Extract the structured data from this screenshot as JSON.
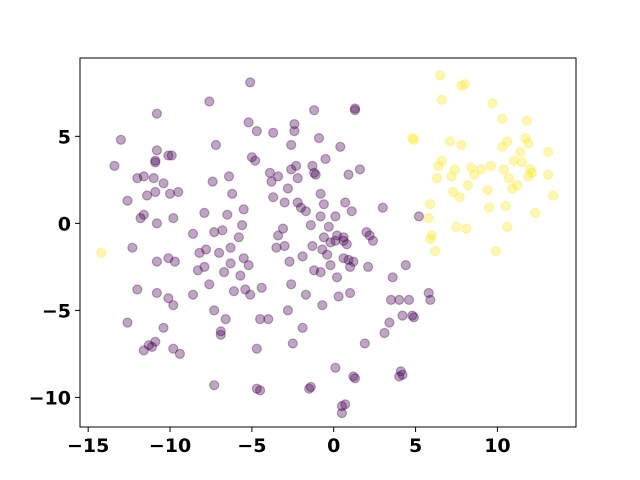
{
  "chart_data": {
    "type": "scatter",
    "title": "",
    "xlabel": "",
    "ylabel": "",
    "xlim": [
      -15.5,
      14.8
    ],
    "ylim": [
      -11.7,
      9.5
    ],
    "xticks": [
      -15,
      -10,
      -5,
      0,
      5,
      10
    ],
    "yticks": [
      5,
      0,
      -5,
      -10
    ],
    "xtick_labels": [
      "−15",
      "−10",
      "−5",
      "0",
      "5",
      "10"
    ],
    "ytick_labels": [
      "5",
      "0",
      "−5",
      "−10"
    ],
    "grid": false,
    "marker_alpha": 0.35,
    "series": [
      {
        "color": "#440154",
        "points": [
          [
            -13.0,
            4.8
          ],
          [
            -13.4,
            3.3
          ],
          [
            -12.6,
            1.3
          ],
          [
            -12.0,
            2.6
          ],
          [
            -11.6,
            2.7
          ],
          [
            -11.4,
            1.6
          ],
          [
            -11.8,
            0.3
          ],
          [
            -11.6,
            0.5
          ],
          [
            -12.3,
            -1.4
          ],
          [
            -12.0,
            -3.8
          ],
          [
            -12.6,
            -5.7
          ],
          [
            -10.8,
            6.3
          ],
          [
            -10.8,
            4.2
          ],
          [
            -10.9,
            3.6
          ],
          [
            -10.9,
            3.5
          ],
          [
            -11.0,
            2.6
          ],
          [
            -10.9,
            1.8
          ],
          [
            -10.4,
            2.3
          ],
          [
            -10.0,
            1.7
          ],
          [
            -10.1,
            3.9
          ],
          [
            -9.9,
            3.9
          ],
          [
            -9.5,
            1.8
          ],
          [
            -10.8,
            0.0
          ],
          [
            -9.8,
            0.3
          ],
          [
            -10.8,
            -2.2
          ],
          [
            -10.1,
            -2.0
          ],
          [
            -9.7,
            -2.2
          ],
          [
            -10.8,
            -4.0
          ],
          [
            -10.1,
            -4.3
          ],
          [
            -9.8,
            -4.7
          ],
          [
            -10.4,
            -6.0
          ],
          [
            -10.9,
            -6.8
          ],
          [
            -11.3,
            -7.0
          ],
          [
            -11.1,
            -7.1
          ],
          [
            -11.6,
            -7.3
          ],
          [
            -9.8,
            -7.2
          ],
          [
            -9.4,
            -7.5
          ],
          [
            -8.6,
            -0.6
          ],
          [
            -8.2,
            -1.7
          ],
          [
            -8.3,
            -2.7
          ],
          [
            -8.6,
            -4.1
          ],
          [
            -7.6,
            7.0
          ],
          [
            -7.2,
            4.5
          ],
          [
            -7.4,
            2.4
          ],
          [
            -7.9,
            0.6
          ],
          [
            -7.3,
            -0.5
          ],
          [
            -7.8,
            -1.5
          ],
          [
            -7.9,
            -2.5
          ],
          [
            -7.6,
            -3.5
          ],
          [
            -7.3,
            -5.0
          ],
          [
            -7.3,
            -9.3
          ],
          [
            -6.9,
            -6.2
          ],
          [
            -6.9,
            -6.4
          ],
          [
            -6.4,
            2.7
          ],
          [
            -6.2,
            1.7
          ],
          [
            -6.5,
            0.5
          ],
          [
            -6.8,
            -0.4
          ],
          [
            -7.0,
            -1.7
          ],
          [
            -6.3,
            -1.4
          ],
          [
            -6.7,
            -2.8
          ],
          [
            -6.3,
            -2.3
          ],
          [
            -6.6,
            -5.5
          ],
          [
            -6.1,
            -3.9
          ],
          [
            -5.4,
            -3.8
          ],
          [
            -5.5,
            0.8
          ],
          [
            -5.6,
            -0.1
          ],
          [
            -5.8,
            -0.8
          ],
          [
            -5.5,
            -2.0
          ],
          [
            -5.2,
            -2.4
          ],
          [
            -5.7,
            -3.0
          ],
          [
            -5.1,
            -4.1
          ],
          [
            -5.2,
            5.8
          ],
          [
            -4.7,
            5.3
          ],
          [
            -5.0,
            3.8
          ],
          [
            -4.8,
            3.6
          ],
          [
            -4.5,
            -5.5
          ],
          [
            -4.7,
            -7.2
          ],
          [
            -4.7,
            -9.5
          ],
          [
            -4.5,
            -9.6
          ],
          [
            -4.0,
            -5.5
          ],
          [
            -4.4,
            -3.7
          ],
          [
            -5.1,
            8.1
          ],
          [
            -3.7,
            5.2
          ],
          [
            -3.9,
            2.9
          ],
          [
            -3.8,
            2.4
          ],
          [
            -3.4,
            2.7
          ],
          [
            -3.7,
            1.5
          ],
          [
            -3.5,
            -1.4
          ],
          [
            -3.4,
            -0.7
          ],
          [
            -3.1,
            -0.3
          ],
          [
            -3.0,
            -1.3
          ],
          [
            -2.7,
            -2.2
          ],
          [
            -2.6,
            -3.5
          ],
          [
            -2.8,
            -5.0
          ],
          [
            -2.5,
            -6.9
          ],
          [
            -3.0,
            1.2
          ],
          [
            -2.8,
            2.0
          ],
          [
            -2.6,
            3.1
          ],
          [
            -2.4,
            5.7
          ],
          [
            -2.4,
            5.3
          ],
          [
            -2.6,
            4.5
          ],
          [
            -2.3,
            3.3
          ],
          [
            -2.2,
            2.6
          ],
          [
            -2.0,
            0.9
          ],
          [
            -2.2,
            1.2
          ],
          [
            -1.7,
            0.7
          ],
          [
            -1.4,
            -0.1
          ],
          [
            -1.9,
            -1.9
          ],
          [
            -1.3,
            -1.3
          ],
          [
            -1.2,
            -2.7
          ],
          [
            -1.7,
            -4.1
          ],
          [
            -1.9,
            -6.0
          ],
          [
            -1.4,
            -9.4
          ],
          [
            -1.5,
            -9.5
          ],
          [
            -1.2,
            6.5
          ],
          [
            -0.9,
            4.9
          ],
          [
            -1.3,
            3.3
          ],
          [
            -1.2,
            2.9
          ],
          [
            -1.1,
            2.8
          ],
          [
            -0.8,
            1.7
          ],
          [
            -0.6,
            1.1
          ],
          [
            -0.8,
            0.4
          ],
          [
            -0.6,
            -0.8
          ],
          [
            -0.7,
            -1.5
          ],
          [
            -0.2,
            -1.1
          ],
          [
            -0.2,
            -2.4
          ],
          [
            -0.8,
            -2.8
          ],
          [
            -0.7,
            -4.7
          ],
          [
            -0.4,
            -1.8
          ],
          [
            -0.3,
            -0.2
          ],
          [
            -0.5,
            3.7
          ],
          [
            0.4,
            4.4
          ],
          [
            0.1,
            0.4
          ],
          [
            0.1,
            -1.0
          ],
          [
            0.2,
            -0.7
          ],
          [
            0.6,
            -0.8
          ],
          [
            0.6,
            -2.0
          ],
          [
            0.2,
            -3.1
          ],
          [
            0.3,
            -4.2
          ],
          [
            0.6,
            -1.0
          ],
          [
            0.8,
            -1.2
          ],
          [
            0.9,
            -2.1
          ],
          [
            0.9,
            2.8
          ],
          [
            0.7,
            1.2
          ],
          [
            1.0,
            -2.5
          ],
          [
            1.2,
            -2.2
          ],
          [
            1.1,
            0.7
          ],
          [
            1.3,
            6.5
          ],
          [
            1.3,
            6.6
          ],
          [
            1.6,
            3.1
          ],
          [
            1.0,
            -4.0
          ],
          [
            0.1,
            -8.3
          ],
          [
            0.7,
            -10.4
          ],
          [
            0.5,
            -10.5
          ],
          [
            0.5,
            -10.9
          ],
          [
            1.2,
            -8.8
          ],
          [
            1.3,
            -8.9
          ],
          [
            1.9,
            -6.9
          ],
          [
            2.0,
            -0.5
          ],
          [
            2.1,
            -2.5
          ],
          [
            2.2,
            -0.7
          ],
          [
            2.4,
            -1.0
          ],
          [
            3.0,
            0.9
          ],
          [
            3.1,
            -6.3
          ],
          [
            3.4,
            -5.7
          ],
          [
            3.6,
            -3.1
          ],
          [
            3.5,
            -4.4
          ],
          [
            4.0,
            -4.4
          ],
          [
            4.2,
            -5.3
          ],
          [
            4.1,
            -8.5
          ],
          [
            4.2,
            -8.7
          ],
          [
            4.0,
            -8.8
          ],
          [
            4.4,
            -2.4
          ],
          [
            4.6,
            -4.4
          ],
          [
            4.8,
            -5.3
          ],
          [
            4.9,
            -5.4
          ],
          [
            5.2,
            0.4
          ],
          [
            5.8,
            -4.0
          ],
          [
            5.9,
            -4.4
          ]
        ]
      },
      {
        "color": "#fde725",
        "points": [
          [
            -14.2,
            -1.7
          ],
          [
            4.8,
            4.9
          ],
          [
            4.9,
            4.8
          ],
          [
            5.8,
            0.3
          ],
          [
            5.9,
            -0.9
          ],
          [
            6.0,
            -0.7
          ],
          [
            5.9,
            1.1
          ],
          [
            6.2,
            -1.6
          ],
          [
            6.3,
            2.6
          ],
          [
            6.4,
            3.3
          ],
          [
            6.6,
            3.6
          ],
          [
            6.5,
            8.5
          ],
          [
            6.6,
            7.1
          ],
          [
            7.1,
            4.7
          ],
          [
            7.2,
            2.7
          ],
          [
            7.3,
            1.8
          ],
          [
            7.4,
            3.1
          ],
          [
            7.5,
            -0.2
          ],
          [
            7.8,
            7.9
          ],
          [
            8.0,
            8.0
          ],
          [
            7.8,
            4.5
          ],
          [
            7.7,
            1.5
          ],
          [
            8.1,
            -0.3
          ],
          [
            8.2,
            2.2
          ],
          [
            8.4,
            3.2
          ],
          [
            8.6,
            2.8
          ],
          [
            9.0,
            3.1
          ],
          [
            9.4,
            1.9
          ],
          [
            9.5,
            0.9
          ],
          [
            9.6,
            3.3
          ],
          [
            9.7,
            6.9
          ],
          [
            9.9,
            -1.6
          ],
          [
            10.3,
            6.0
          ],
          [
            10.3,
            4.4
          ],
          [
            10.4,
            3.1
          ],
          [
            10.5,
            1.0
          ],
          [
            10.6,
            4.7
          ],
          [
            10.7,
            2.6
          ],
          [
            10.6,
            -0.2
          ],
          [
            10.9,
            2.0
          ],
          [
            11.2,
            2.2
          ],
          [
            11.0,
            3.6
          ],
          [
            11.4,
            4.1
          ],
          [
            11.5,
            3.5
          ],
          [
            11.8,
            5.9
          ],
          [
            11.9,
            4.6
          ],
          [
            12.0,
            3.1
          ],
          [
            11.9,
            2.7
          ],
          [
            12.1,
            2.9
          ],
          [
            12.3,
            0.6
          ],
          [
            13.1,
            4.1
          ],
          [
            13.1,
            2.8
          ],
          [
            13.4,
            1.6
          ],
          [
            11.7,
            4.9
          ]
        ]
      }
    ]
  }
}
